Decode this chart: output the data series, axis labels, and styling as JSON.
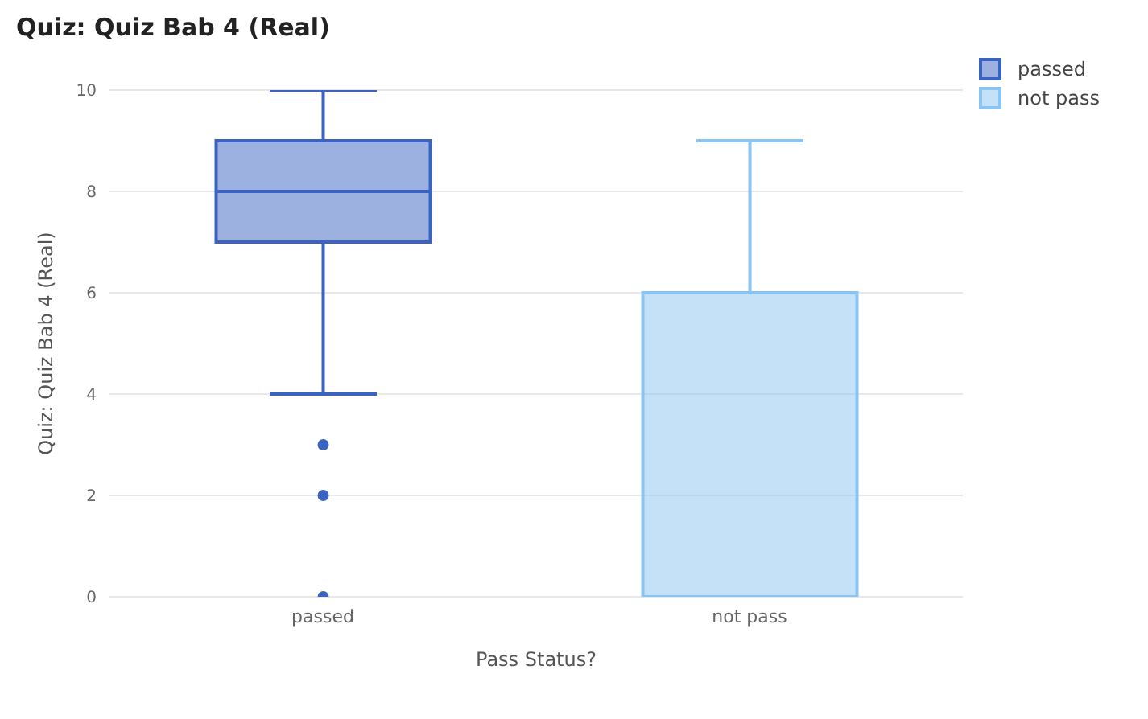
{
  "chart_data": {
    "type": "box",
    "title": "Quiz: Quiz Bab 4 (Real)",
    "xlabel": "Pass Status?",
    "ylabel": "Quiz: Quiz Bab 4 (Real)",
    "categories": [
      "passed",
      "not pass"
    ],
    "series": [
      {
        "name": "passed",
        "color": "#3a64c0",
        "boxes": [
          {
            "low": 4,
            "q1": 7,
            "median": 8,
            "q3": 9,
            "high": 10,
            "outliers": [
              3,
              2,
              0
            ]
          },
          null
        ]
      },
      {
        "name": "not pass",
        "color": "#8ac4f2",
        "boxes": [
          null,
          {
            "low": 0,
            "q1": 0,
            "median": 0,
            "q3": 6,
            "high": 9
          }
        ]
      }
    ],
    "ylim": [
      0,
      10
    ],
    "yticks": [
      0,
      2,
      4,
      6,
      8,
      10
    ],
    "grid": "y",
    "legend": "top right"
  }
}
